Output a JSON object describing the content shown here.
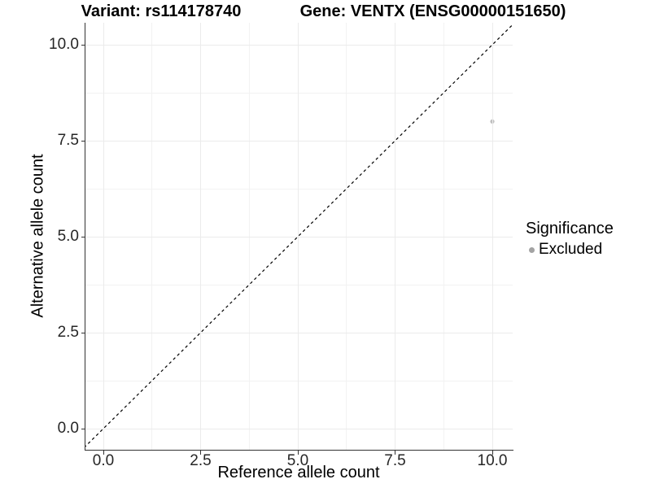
{
  "chart_data": {
    "type": "scatter",
    "titles": {
      "left": "Variant: rs114178740",
      "right": "Gene: VENTX (ENSG00000151650)"
    },
    "xlabel": "Reference allele count",
    "ylabel": "Alternative allele count",
    "xlim": [
      -0.46,
      10.52
    ],
    "ylim": [
      -0.55,
      10.55
    ],
    "x_ticks": {
      "values": [
        0,
        2.5,
        5,
        7.5,
        10
      ],
      "labels": [
        "0.0",
        "2.5",
        "5.0",
        "7.5",
        "10.0"
      ]
    },
    "y_ticks": {
      "values": [
        0,
        2.5,
        5,
        7.5,
        10
      ],
      "labels": [
        "0.0",
        "2.5",
        "5.0",
        "7.5",
        "10.0"
      ]
    },
    "x_minor_ticks": [
      1.25,
      3.75,
      6.25,
      8.75
    ],
    "y_minor_ticks": [
      1.25,
      3.75,
      6.25,
      8.75
    ],
    "grid": "major+minor",
    "identity_line": {
      "style": "dashed",
      "from": -0.6,
      "to": 10.6,
      "color": "#000000"
    },
    "points": [
      {
        "x": 10,
        "y": 8,
        "significance": "Excluded",
        "color": "#bfbfbf"
      }
    ],
    "legend": {
      "title": "Significance",
      "position": "right",
      "entries": [
        {
          "label": "Excluded",
          "color": "#a3a3a3"
        }
      ]
    },
    "colors": {
      "grid_major": "#ebebeb",
      "grid_minor": "#f2f2f2",
      "axis_line": "#333333",
      "tick_text": "#262626",
      "point": "#bfbfbf"
    }
  }
}
